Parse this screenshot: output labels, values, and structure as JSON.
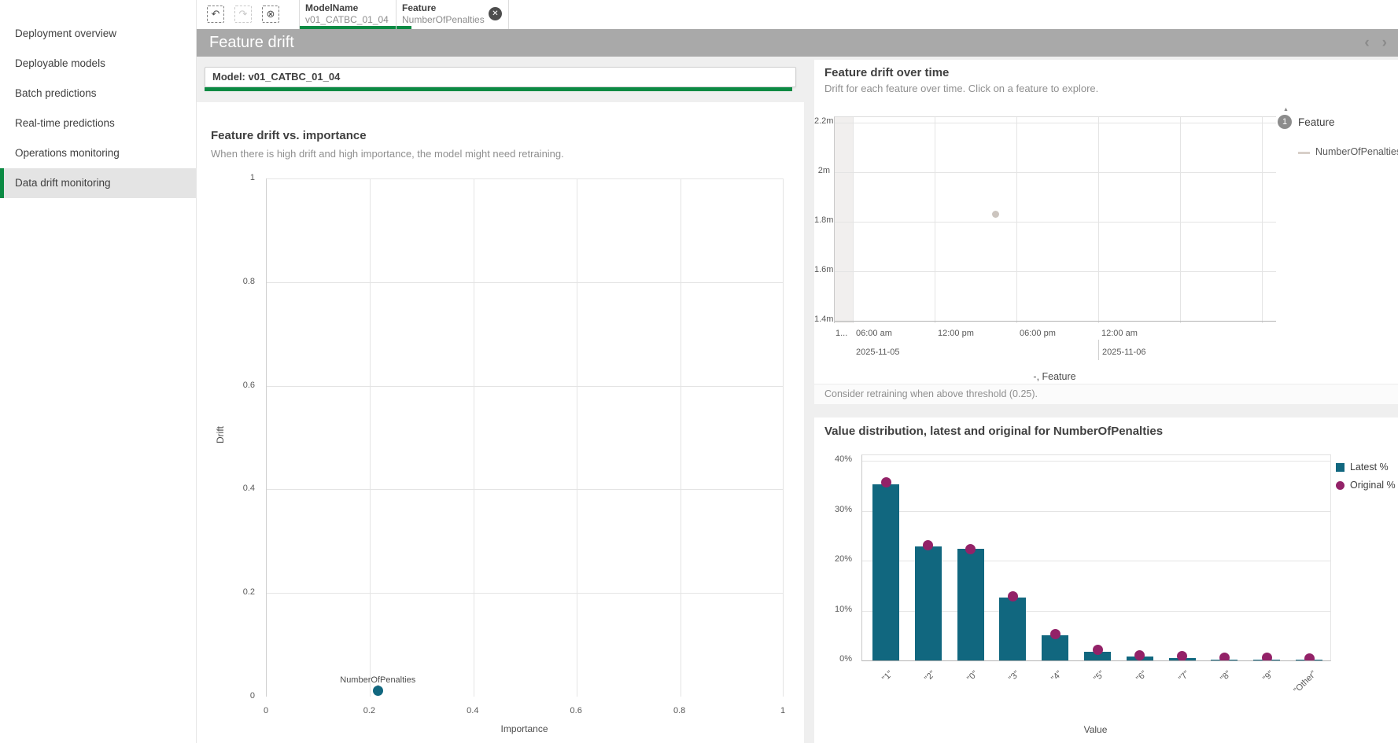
{
  "sidebar": {
    "items": [
      {
        "label": "Deployment overview",
        "selected": false
      },
      {
        "label": "Deployable models",
        "selected": false
      },
      {
        "label": "Batch predictions",
        "selected": false
      },
      {
        "label": "Real-time predictions",
        "selected": false
      },
      {
        "label": "Operations monitoring",
        "selected": false
      },
      {
        "label": "Data drift monitoring",
        "selected": true
      }
    ]
  },
  "toolbar": {
    "buttons": [
      {
        "name": "step-back-selection",
        "glyph": "↶",
        "disabled": false
      },
      {
        "name": "step-forward-selection",
        "glyph": "↷",
        "disabled": true
      },
      {
        "name": "clear-all-selections",
        "glyph": "⊗",
        "disabled": false
      }
    ],
    "chips": [
      {
        "field": "ModelName",
        "value": "v01_CATBC_01_04"
      },
      {
        "field": "Feature",
        "value": "NumberOfPenalties",
        "clear_glyph": "✕"
      }
    ]
  },
  "header": {
    "title": "Feature drift",
    "prev_icon": "‹",
    "next_icon": "›"
  },
  "model_selector": {
    "label": "Model: v01_CATBC_01_04"
  },
  "panels": {
    "scatter": {
      "title": "Feature drift vs. importance",
      "subtitle": "When there is high drift and high importance, the model might need retraining."
    },
    "time": {
      "title": "Feature drift over time",
      "subtitle": "Drift for each feature over time. Click on a feature to explore.",
      "legend_sort_icon": "▲",
      "legend_badge": "1",
      "legend_title": "Feature",
      "axis_caption": "-, Feature",
      "footnote": "Consider retraining when above threshold (0.25)."
    },
    "dist": {
      "title": "Value distribution, latest and original for NumberOfPenalties"
    }
  },
  "chart_data": [
    {
      "id": "drift-vs-importance",
      "type": "scatter",
      "title": "Feature drift vs. importance",
      "xlabel": "Importance",
      "ylabel": "Drift",
      "xlim": [
        0,
        1
      ],
      "ylim": [
        0,
        1
      ],
      "x_ticks": [
        "0",
        "0.2",
        "0.4",
        "0.6",
        "0.8",
        "1"
      ],
      "y_ticks": [
        "1",
        "0.8",
        "0.6",
        "0.4",
        "0.2",
        "0"
      ],
      "grid": true,
      "points": [
        {
          "label": "NumberOfPenalties",
          "importance": 0.215,
          "drift": 0.012
        }
      ]
    },
    {
      "id": "drift-over-time",
      "type": "line",
      "title": "Feature drift over time",
      "ylim": [
        1.4,
        2.25
      ],
      "y_unit": "m",
      "y_ticks": [
        "2.2m",
        "2m",
        "1.8m",
        "1.6m",
        "1.4m"
      ],
      "x_ticks": [
        "1...",
        "06:00 am",
        "12:00 pm",
        "06:00 pm",
        "12:00 am"
      ],
      "x_dates": [
        "2025-11-05",
        "2025-11-06"
      ],
      "series": [
        {
          "name": "NumberOfPenalties",
          "points": [
            {
              "time": "2025-11-05 ~4:30 pm",
              "value_m": 1.83,
              "x_frac": 0.364
            }
          ]
        }
      ],
      "threshold": 0.25,
      "legend_position": "right"
    },
    {
      "id": "value-distribution",
      "type": "bar",
      "title": "Value distribution, latest and original for NumberOfPenalties",
      "xlabel": "Value",
      "ylim": [
        0,
        40
      ],
      "y_ticks": [
        "40%",
        "30%",
        "20%",
        "10%",
        "0%"
      ],
      "categories": [
        "\"1\"",
        "\"2\"",
        "\"0\"",
        "\"3\"",
        "\"4\"",
        "\"5\"",
        "\"6\"",
        "\"7\"",
        "\"8\"",
        "\"9\"",
        "\"Other\""
      ],
      "series": [
        {
          "name": "Latest %",
          "color": "#11677f",
          "values": [
            35.2,
            22.9,
            22.4,
            12.6,
            5.0,
            1.7,
            0.8,
            0.4,
            0.15,
            0.1,
            0.1
          ]
        },
        {
          "name": "Original %",
          "color": "#932268",
          "values": [
            35.7,
            23.0,
            22.3,
            12.9,
            5.3,
            2.1,
            1.1,
            0.8,
            0.5,
            0.5,
            0.4
          ]
        }
      ],
      "legend_position": "right"
    }
  ],
  "colors": {
    "selection_green": "#0b8a43",
    "teal": "#11677f",
    "magenta": "#932268",
    "header_gray": "#a9a9a9",
    "time_dot_gray": "#ccc5bf",
    "legend_line_gray": "#d8cfc9"
  }
}
